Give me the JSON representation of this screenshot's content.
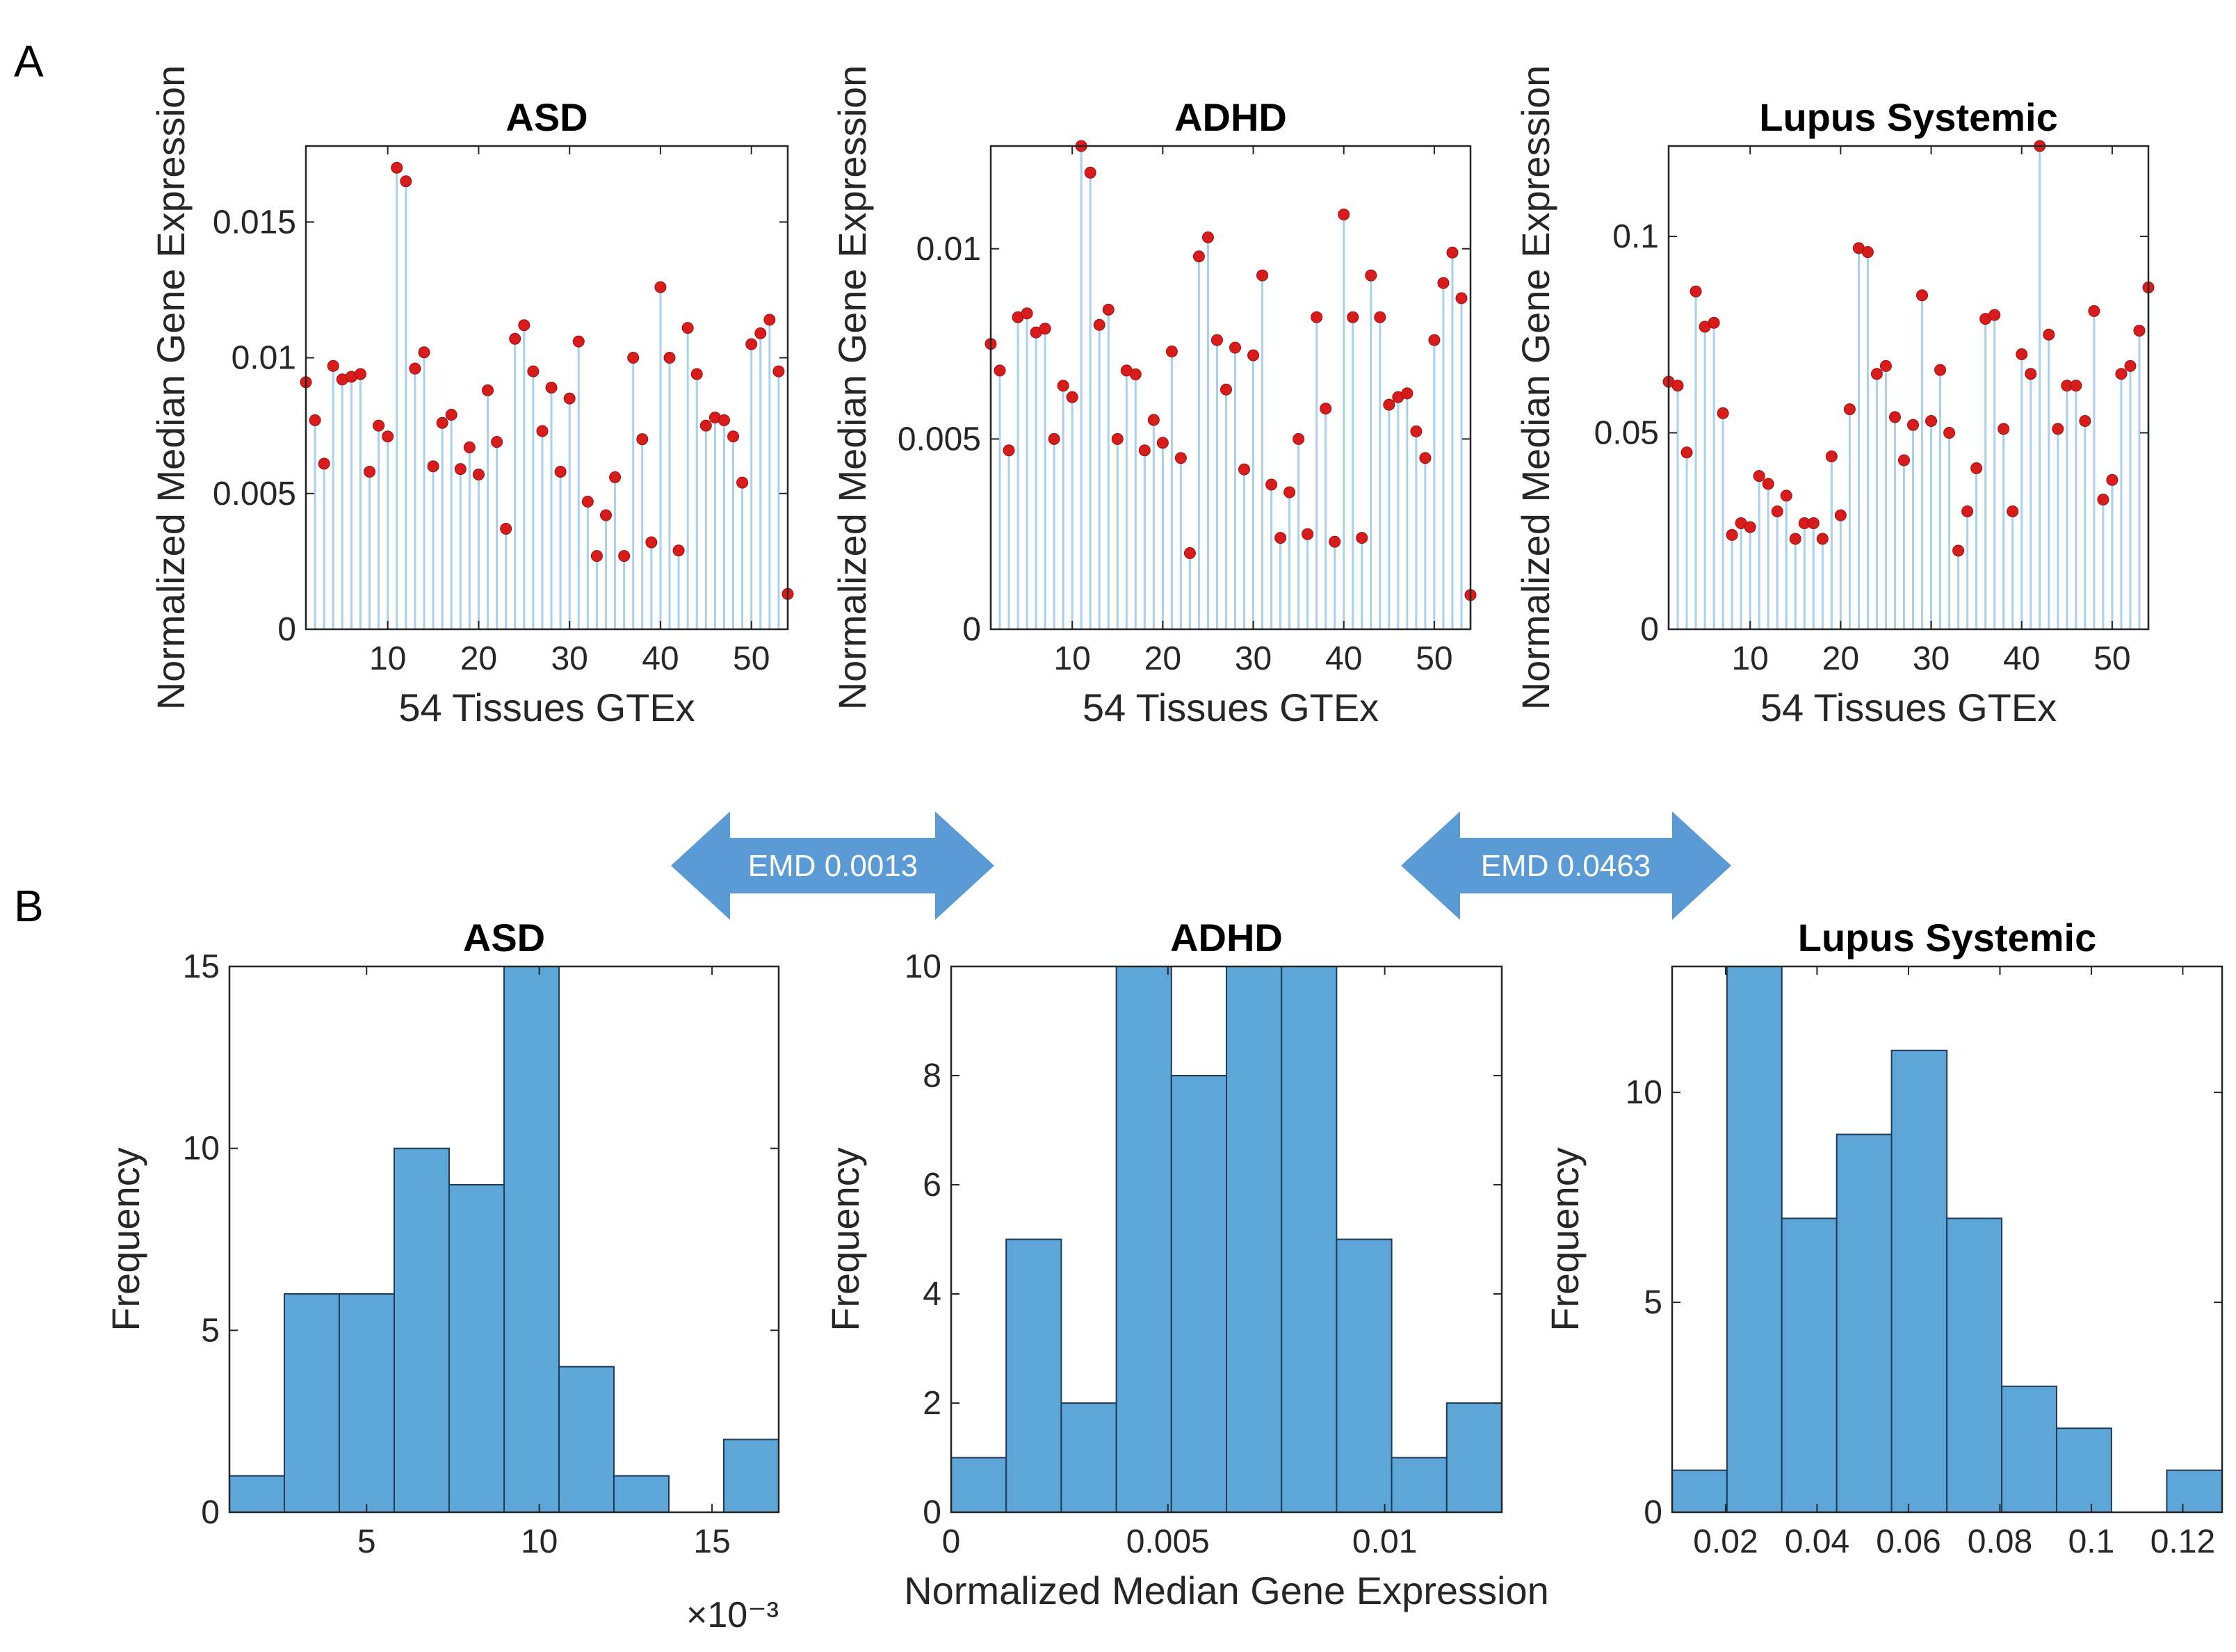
{
  "figure": {
    "panel_labels": [
      "A",
      "B"
    ],
    "emd": [
      {
        "label": "EMD 0.0013"
      },
      {
        "label": "EMD 0.0463"
      }
    ],
    "colors": {
      "stem": "#a9d0ee",
      "marker": "#d81b1b",
      "bar_fill": "#5fa6d8",
      "bar_edge": "#1f3b57",
      "arrow": "#5b9bd5",
      "axis": "#262626"
    }
  },
  "chart_data": [
    {
      "type": "stem",
      "title": "ASD",
      "xlabel": "54 Tissues GTEx",
      "ylabel": "Normalized Median Gene Expression",
      "xlim": [
        1,
        54
      ],
      "ylim": [
        0,
        0.0178
      ],
      "xticks": [
        10,
        20,
        30,
        40,
        50
      ],
      "xtick_labels": [
        "10",
        "20",
        "30",
        "40",
        "50"
      ],
      "yticks": [
        0,
        0.005,
        0.01,
        0.015
      ],
      "ytick_labels": [
        "0",
        "0.005",
        "0.01",
        "0.015"
      ],
      "x": [
        1,
        2,
        3,
        4,
        5,
        6,
        7,
        8,
        9,
        10,
        11,
        12,
        13,
        14,
        15,
        16,
        17,
        18,
        19,
        20,
        21,
        22,
        23,
        24,
        25,
        26,
        27,
        28,
        29,
        30,
        31,
        32,
        33,
        34,
        35,
        36,
        37,
        38,
        39,
        40,
        41,
        42,
        43,
        44,
        45,
        46,
        47,
        48,
        49,
        50,
        51,
        52,
        53,
        54
      ],
      "values": [
        0.0091,
        0.0077,
        0.0061,
        0.0097,
        0.0092,
        0.0093,
        0.0094,
        0.0058,
        0.0075,
        0.0071,
        0.017,
        0.0165,
        0.0096,
        0.0102,
        0.006,
        0.0076,
        0.0079,
        0.0059,
        0.0067,
        0.0057,
        0.0088,
        0.0069,
        0.0037,
        0.0107,
        0.0112,
        0.0095,
        0.0073,
        0.0089,
        0.0058,
        0.0085,
        0.0106,
        0.0047,
        0.0027,
        0.0042,
        0.0056,
        0.0027,
        0.01,
        0.007,
        0.0032,
        0.0126,
        0.01,
        0.0029,
        0.0111,
        0.0094,
        0.0075,
        0.0078,
        0.0077,
        0.0071,
        0.0054,
        0.0105,
        0.0109,
        0.0114,
        0.0095,
        0.0013
      ]
    },
    {
      "type": "stem",
      "title": "ADHD",
      "xlabel": "54 Tissues GTEx",
      "ylabel": "Normalized Median Gene Expression",
      "xlim": [
        1,
        54
      ],
      "ylim": [
        0,
        0.0127
      ],
      "xticks": [
        10,
        20,
        30,
        40,
        50
      ],
      "xtick_labels": [
        "10",
        "20",
        "30",
        "40",
        "50"
      ],
      "yticks": [
        0,
        0.005,
        0.01
      ],
      "ytick_labels": [
        "0",
        "0.005",
        "0.01"
      ],
      "x": [
        1,
        2,
        3,
        4,
        5,
        6,
        7,
        8,
        9,
        10,
        11,
        12,
        13,
        14,
        15,
        16,
        17,
        18,
        19,
        20,
        21,
        22,
        23,
        24,
        25,
        26,
        27,
        28,
        29,
        30,
        31,
        32,
        33,
        34,
        35,
        36,
        37,
        38,
        39,
        40,
        41,
        42,
        43,
        44,
        45,
        46,
        47,
        48,
        49,
        50,
        51,
        52,
        53,
        54
      ],
      "values": [
        0.0075,
        0.0068,
        0.0047,
        0.0082,
        0.0083,
        0.0078,
        0.0079,
        0.005,
        0.0064,
        0.0061,
        0.0127,
        0.012,
        0.008,
        0.0084,
        0.005,
        0.0068,
        0.0067,
        0.0047,
        0.0055,
        0.0049,
        0.0073,
        0.0045,
        0.002,
        0.0098,
        0.0103,
        0.0076,
        0.0063,
        0.0074,
        0.0042,
        0.0072,
        0.0093,
        0.0038,
        0.0024,
        0.0036,
        0.005,
        0.0025,
        0.0082,
        0.0058,
        0.0023,
        0.0109,
        0.0082,
        0.0024,
        0.0093,
        0.0082,
        0.0059,
        0.0061,
        0.0062,
        0.0052,
        0.0045,
        0.0076,
        0.0091,
        0.0099,
        0.0087,
        0.0009
      ]
    },
    {
      "type": "stem",
      "title": "Lupus Systemic",
      "xlabel": "54 Tissues GTEx",
      "ylabel": "Normalized Median Gene Expression",
      "xlim": [
        1,
        54
      ],
      "ylim": [
        0,
        0.123
      ],
      "xticks": [
        10,
        20,
        30,
        40,
        50
      ],
      "xtick_labels": [
        "10",
        "20",
        "30",
        "40",
        "50"
      ],
      "yticks": [
        0,
        0.05,
        0.1
      ],
      "ytick_labels": [
        "0",
        "0.05",
        "0.1"
      ],
      "x": [
        1,
        2,
        3,
        4,
        5,
        6,
        7,
        8,
        9,
        10,
        11,
        12,
        13,
        14,
        15,
        16,
        17,
        18,
        19,
        20,
        21,
        22,
        23,
        24,
        25,
        26,
        27,
        28,
        29,
        30,
        31,
        32,
        33,
        34,
        35,
        36,
        37,
        38,
        39,
        40,
        41,
        42,
        43,
        44,
        45,
        46,
        47,
        48,
        49,
        50,
        51,
        52,
        53,
        54
      ],
      "values": [
        0.063,
        0.062,
        0.045,
        0.086,
        0.077,
        0.078,
        0.055,
        0.024,
        0.027,
        0.026,
        0.039,
        0.037,
        0.03,
        0.034,
        0.023,
        0.027,
        0.027,
        0.023,
        0.044,
        0.029,
        0.056,
        0.097,
        0.096,
        0.065,
        0.067,
        0.054,
        0.043,
        0.052,
        0.085,
        0.053,
        0.066,
        0.05,
        0.02,
        0.03,
        0.041,
        0.079,
        0.08,
        0.051,
        0.03,
        0.07,
        0.065,
        0.123,
        0.075,
        0.051,
        0.062,
        0.062,
        0.053,
        0.081,
        0.033,
        0.038,
        0.065,
        0.067,
        0.076,
        0.087
      ]
    },
    {
      "type": "histogram",
      "title": "ASD",
      "xlabel": "",
      "ylabel": "Frequency",
      "x_exponent_label": "×10⁻³",
      "xlim": [
        1.03,
        16.93
      ],
      "ylim": [
        0,
        15
      ],
      "xticks": [
        5,
        10,
        15
      ],
      "xtick_labels": [
        "5",
        "10",
        "15"
      ],
      "yticks": [
        0,
        5,
        10,
        15
      ],
      "ytick_labels": [
        "0",
        "5",
        "10",
        "15"
      ],
      "bin_edges": [
        1.03,
        2.62,
        4.21,
        5.8,
        7.39,
        8.98,
        10.57,
        12.16,
        13.75,
        15.34,
        16.93
      ],
      "values": [
        1,
        6,
        6,
        10,
        9,
        15,
        4,
        1,
        0,
        2
      ]
    },
    {
      "type": "histogram",
      "title": "ADHD",
      "xlabel": "Normalized Median Gene Expression",
      "ylabel": "Frequency",
      "xlim": [
        0,
        0.0127
      ],
      "ylim": [
        0,
        10
      ],
      "xticks": [
        0,
        0.005,
        0.01
      ],
      "xtick_labels": [
        "0",
        "0.005",
        "0.01"
      ],
      "yticks": [
        0,
        2,
        4,
        6,
        8,
        10
      ],
      "ytick_labels": [
        "0",
        "2",
        "4",
        "6",
        "8",
        "10"
      ],
      "bin_edges": [
        0,
        0.00127,
        0.00254,
        0.00381,
        0.00508,
        0.00635,
        0.00762,
        0.00889,
        0.01016,
        0.01143,
        0.0127
      ],
      "values": [
        1,
        5,
        2,
        10,
        8,
        10,
        10,
        5,
        1,
        2
      ]
    },
    {
      "type": "histogram",
      "title": "Lupus Systemic",
      "xlabel": "",
      "ylabel": "Frequency",
      "xlim": [
        0.0083,
        0.1286
      ],
      "ylim": [
        0,
        13
      ],
      "xticks": [
        0.02,
        0.04,
        0.06,
        0.08,
        0.1,
        0.12
      ],
      "xtick_labels": [
        "0.02",
        "0.04",
        "0.06",
        "0.08",
        "0.1",
        "0.12"
      ],
      "yticks": [
        0,
        5,
        10
      ],
      "ytick_labels": [
        "0",
        "5",
        "10"
      ],
      "bin_edges": [
        0.0083,
        0.0203,
        0.0323,
        0.0443,
        0.0563,
        0.0684,
        0.0804,
        0.0924,
        0.1044,
        0.1165,
        0.1286
      ],
      "values": [
        1,
        13,
        7,
        9,
        11,
        7,
        3,
        2,
        0,
        1
      ]
    }
  ]
}
